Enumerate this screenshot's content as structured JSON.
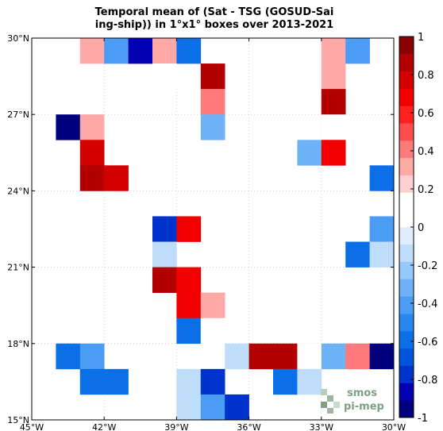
{
  "chart_data": {
    "type": "heatmap",
    "title_lines": [
      "Temporal mean of (Sat - TSG (GOSUD-Sai",
      "ing-ship)) in 1°x1° boxes over 2013-2021"
    ],
    "x_ticks": [
      {
        "value": -45,
        "label": "45°W"
      },
      {
        "value": -42,
        "label": "42°W"
      },
      {
        "value": -39,
        "label": "39°W"
      },
      {
        "value": -36,
        "label": "36°W"
      },
      {
        "value": -33,
        "label": "33°W"
      },
      {
        "value": -30,
        "label": "30°W"
      }
    ],
    "y_ticks": [
      {
        "value": 15,
        "label": "15°N"
      },
      {
        "value": 18,
        "label": "18°N"
      },
      {
        "value": 21,
        "label": "21°N"
      },
      {
        "value": 24,
        "label": "24°N"
      },
      {
        "value": 27,
        "label": "27°N"
      },
      {
        "value": 30,
        "label": "30°N"
      }
    ],
    "xlim": [
      -45,
      -30
    ],
    "ylim": [
      15,
      30
    ],
    "grid": true,
    "colorbar": {
      "range": [
        -1,
        1
      ],
      "ticks": [
        {
          "value": 1,
          "label": "1"
        },
        {
          "value": 0.8,
          "label": "0.8"
        },
        {
          "value": 0.6,
          "label": "0.6"
        },
        {
          "value": 0.4,
          "label": "0.4"
        },
        {
          "value": 0.2,
          "label": "0.2"
        },
        {
          "value": 0,
          "label": "0"
        },
        {
          "value": -0.2,
          "label": "-0.2"
        },
        {
          "value": -0.4,
          "label": "-0.4"
        },
        {
          "value": -0.6,
          "label": "-0.6"
        },
        {
          "value": -0.8,
          "label": "-0.8"
        },
        {
          "value": -1,
          "label": "-1"
        }
      ],
      "colors": [
        "#00007f",
        "#0000b2",
        "#0033cc",
        "#0055dd",
        "#0b6fe8",
        "#2a86f0",
        "#4a9cf5",
        "#6fb3f7",
        "#96c8f8",
        "#bdddfb",
        "#e0edfc",
        "#ffffff",
        "#ffffff",
        "#ffd0d0",
        "#ffa8a8",
        "#ff7a7a",
        "#ff4d4d",
        "#ff2020",
        "#f20000",
        "#d40000",
        "#b30000",
        "#8b0000"
      ]
    },
    "cells": [
      {
        "lon": -42.5,
        "lat": 29.5,
        "value": 0.35
      },
      {
        "lon": -41.5,
        "lat": 29.5,
        "value": -0.4
      },
      {
        "lon": -40.5,
        "lat": 29.5,
        "value": -0.9
      },
      {
        "lon": -39.5,
        "lat": 29.5,
        "value": 0.3
      },
      {
        "lon": -38.5,
        "lat": 29.5,
        "value": -0.6
      },
      {
        "lon": -32.5,
        "lat": 29.5,
        "value": 0.3
      },
      {
        "lon": -31.5,
        "lat": 29.5,
        "value": -0.45
      },
      {
        "lon": -39.5,
        "lat": 28.5,
        "value": 0.15
      },
      {
        "lon": -37.5,
        "lat": 28.5,
        "value": 0.85
      },
      {
        "lon": -32.5,
        "lat": 28.5,
        "value": 0.3
      },
      {
        "lon": -37.5,
        "lat": 27.5,
        "value": 0.4
      },
      {
        "lon": -32.5,
        "lat": 27.5,
        "value": 0.9
      },
      {
        "lon": -43.5,
        "lat": 26.5,
        "value": -1.0
      },
      {
        "lon": -42.5,
        "lat": 26.5,
        "value": 0.3
      },
      {
        "lon": -37.5,
        "lat": 26.5,
        "value": -0.35
      },
      {
        "lon": -32.5,
        "lat": 26.5,
        "value": 0.15
      },
      {
        "lon": -42.5,
        "lat": 25.5,
        "value": 0.8
      },
      {
        "lon": -33.5,
        "lat": 25.5,
        "value": -0.35
      },
      {
        "lon": -32.5,
        "lat": 25.5,
        "value": 0.65
      },
      {
        "lon": -42.5,
        "lat": 24.5,
        "value": 0.9
      },
      {
        "lon": -41.5,
        "lat": 24.5,
        "value": 0.8
      },
      {
        "lon": -30.5,
        "lat": 24.5,
        "value": -0.6
      },
      {
        "lon": -39.5,
        "lat": 22.5,
        "value": -0.75
      },
      {
        "lon": -38.5,
        "lat": 22.5,
        "value": 0.65
      },
      {
        "lon": -30.5,
        "lat": 22.5,
        "value": -0.4
      },
      {
        "lon": -39.5,
        "lat": 21.5,
        "value": -0.15
      },
      {
        "lon": -31.5,
        "lat": 21.5,
        "value": -0.55
      },
      {
        "lon": -30.5,
        "lat": 21.5,
        "value": -0.15
      },
      {
        "lon": -39.5,
        "lat": 20.5,
        "value": 0.9
      },
      {
        "lon": -38.5,
        "lat": 20.5,
        "value": 0.7
      },
      {
        "lon": -38.5,
        "lat": 19.5,
        "value": 0.7
      },
      {
        "lon": -37.5,
        "lat": 19.5,
        "value": 0.3
      },
      {
        "lon": -38.5,
        "lat": 18.5,
        "value": -0.55
      },
      {
        "lon": -37.5,
        "lat": 18.5,
        "value": 0.15
      },
      {
        "lon": -43.5,
        "lat": 17.5,
        "value": -0.6
      },
      {
        "lon": -42.5,
        "lat": 17.5,
        "value": -0.4
      },
      {
        "lon": -36.5,
        "lat": 17.5,
        "value": -0.15
      },
      {
        "lon": -35.5,
        "lat": 17.5,
        "value": 0.9
      },
      {
        "lon": -34.5,
        "lat": 17.5,
        "value": 0.9
      },
      {
        "lon": -33.5,
        "lat": 17.5,
        "value": 0.15
      },
      {
        "lon": -32.5,
        "lat": 17.5,
        "value": -0.35
      },
      {
        "lon": -31.5,
        "lat": 17.5,
        "value": 0.4
      },
      {
        "lon": -30.5,
        "lat": 17.5,
        "value": -1.0
      },
      {
        "lon": -42.5,
        "lat": 16.5,
        "value": -0.55
      },
      {
        "lon": -41.5,
        "lat": 16.5,
        "value": -0.55
      },
      {
        "lon": -38.5,
        "lat": 16.5,
        "value": -0.15
      },
      {
        "lon": -37.5,
        "lat": 16.5,
        "value": -0.75
      },
      {
        "lon": -34.5,
        "lat": 16.5,
        "value": -0.6
      },
      {
        "lon": -33.5,
        "lat": 16.5,
        "value": -0.15
      },
      {
        "lon": -38.5,
        "lat": 15.5,
        "value": -0.15
      },
      {
        "lon": -37.5,
        "lat": 15.5,
        "value": -0.45
      },
      {
        "lon": -36.5,
        "lat": 15.5,
        "value": -0.8
      }
    ]
  },
  "logo": {
    "line1": "smos",
    "line2": "pi-mep",
    "color": "#7f9f86"
  }
}
